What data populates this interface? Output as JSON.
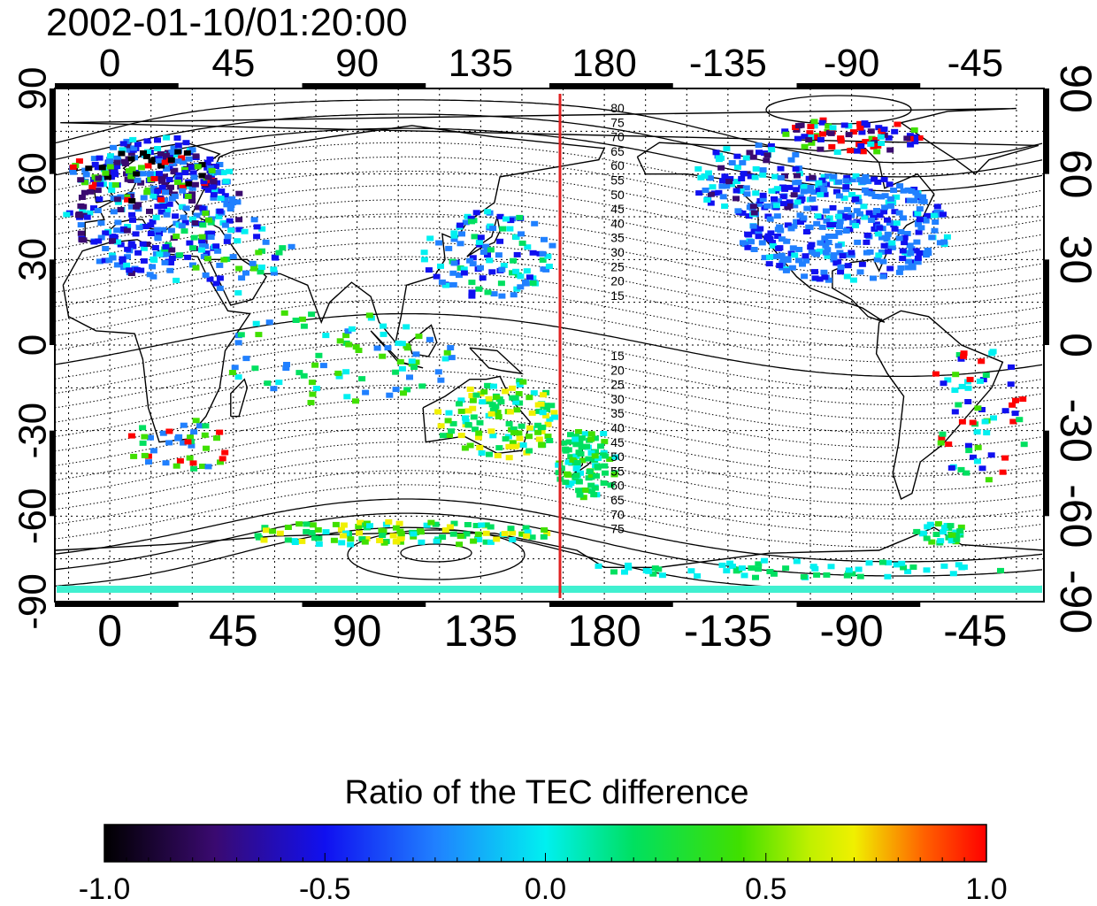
{
  "title": "2002-01-10/01:20:00",
  "map": {
    "top_axis_labels": [
      "0",
      "45",
      "90",
      "135",
      "180",
      "-135",
      "-90",
      "-45"
    ],
    "bottom_axis_labels": [
      "0",
      "45",
      "90",
      "135",
      "180",
      "-135",
      "-90",
      "-45"
    ],
    "left_axis_labels": [
      "90",
      "60",
      "30",
      "0",
      "-30",
      "-60",
      "-90"
    ],
    "right_axis_labels": [
      "90",
      "60",
      "30",
      "0",
      "-30",
      "-60",
      "-90"
    ],
    "north_contour_labels": [
      "80",
      "75",
      "70",
      "65",
      "60",
      "55",
      "50",
      "45",
      "40",
      "35",
      "30",
      "25",
      "20",
      "15"
    ],
    "south_contour_labels": [
      "15",
      "20",
      "25",
      "30",
      "35",
      "40",
      "45",
      "50",
      "55",
      "60",
      "65",
      "70",
      "75"
    ],
    "marker_color": "#e02020"
  },
  "colorbar": {
    "title": "Ratio of the TEC difference",
    "tick_labels": [
      "-1.0",
      "-0.5",
      "0.0",
      "0.5",
      "1.0"
    ],
    "colors": [
      "#000000",
      "#3a0a70",
      "#1010f0",
      "#2080ff",
      "#00f0f0",
      "#00e060",
      "#40e000",
      "#f0f000",
      "#ff6000",
      "#ff0000"
    ]
  }
}
